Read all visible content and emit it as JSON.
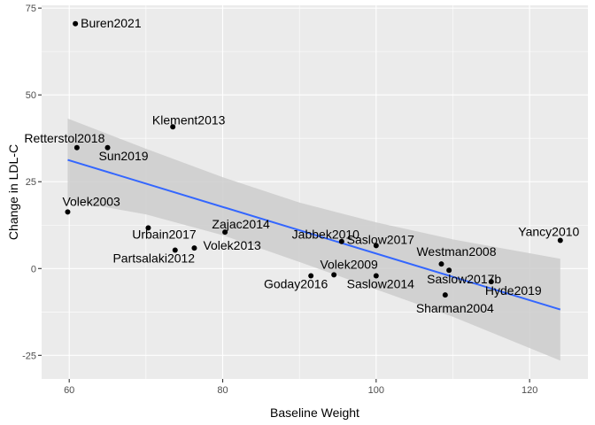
{
  "chart_data": {
    "type": "scatter",
    "xlabel": "Baseline Weight",
    "ylabel": "Change in LDL-C",
    "xlim": [
      56.4,
      127.6
    ],
    "ylim": [
      -31.8,
      75.8
    ],
    "x_ticks": [
      60,
      80,
      100,
      120
    ],
    "y_ticks": [
      -25,
      0,
      25,
      50,
      75
    ],
    "grid": true,
    "panel_background": "#ebebeb",
    "grid_color": "#ffffff",
    "point_color": "#000000",
    "trend_color": "#3366ff",
    "ribbon_color": "#cccccc",
    "points": [
      {
        "label": "Buren2021",
        "x": 60.8,
        "y": 70.5
      },
      {
        "label": "Klement2013",
        "x": 73.5,
        "y": 40.8
      },
      {
        "label": "Retterstol2018",
        "x": 61.0,
        "y": 34.8
      },
      {
        "label": "Sun2019",
        "x": 65.0,
        "y": 34.8
      },
      {
        "label": "Volek2003",
        "x": 59.8,
        "y": 16.3
      },
      {
        "label": "Urbain2017",
        "x": 70.3,
        "y": 11.7
      },
      {
        "label": "Zajac2014",
        "x": 80.3,
        "y": 10.5
      },
      {
        "label": "Partsalaki2012",
        "x": 73.8,
        "y": 5.3
      },
      {
        "label": "Volek2013",
        "x": 76.3,
        "y": 5.9
      },
      {
        "label": "Jabbek2010",
        "x": 95.5,
        "y": 7.8
      },
      {
        "label": "Saslow2017",
        "x": 100.0,
        "y": 6.6
      },
      {
        "label": "Yancy2010",
        "x": 124.0,
        "y": 8.1
      },
      {
        "label": "Westman2008",
        "x": 108.5,
        "y": 1.3
      },
      {
        "label": "Saslow2017b",
        "x": 109.5,
        "y": -0.5
      },
      {
        "label": "Goday2016",
        "x": 91.5,
        "y": -2.1
      },
      {
        "label": "Volek2009",
        "x": 94.5,
        "y": -1.8
      },
      {
        "label": "Saslow2014",
        "x": 100.0,
        "y": -2.1
      },
      {
        "label": "Sharman2004",
        "x": 109.0,
        "y": -7.6
      },
      {
        "label": "Hyde2019",
        "x": 115.0,
        "y": -3.8
      }
    ],
    "trend_line": {
      "x": [
        59.8,
        124.0
      ],
      "y": [
        31.3,
        -11.8
      ]
    },
    "confidence_band": {
      "x": [
        59.8,
        70,
        80,
        90,
        100,
        110,
        124.0
      ],
      "upper": [
        43.2,
        34.5,
        26.3,
        19.0,
        13.3,
        8.4,
        2.8
      ],
      "lower": [
        19.6,
        15.6,
        9.6,
        1.9,
        -6.0,
        -13.9,
        -26.5
      ]
    }
  }
}
